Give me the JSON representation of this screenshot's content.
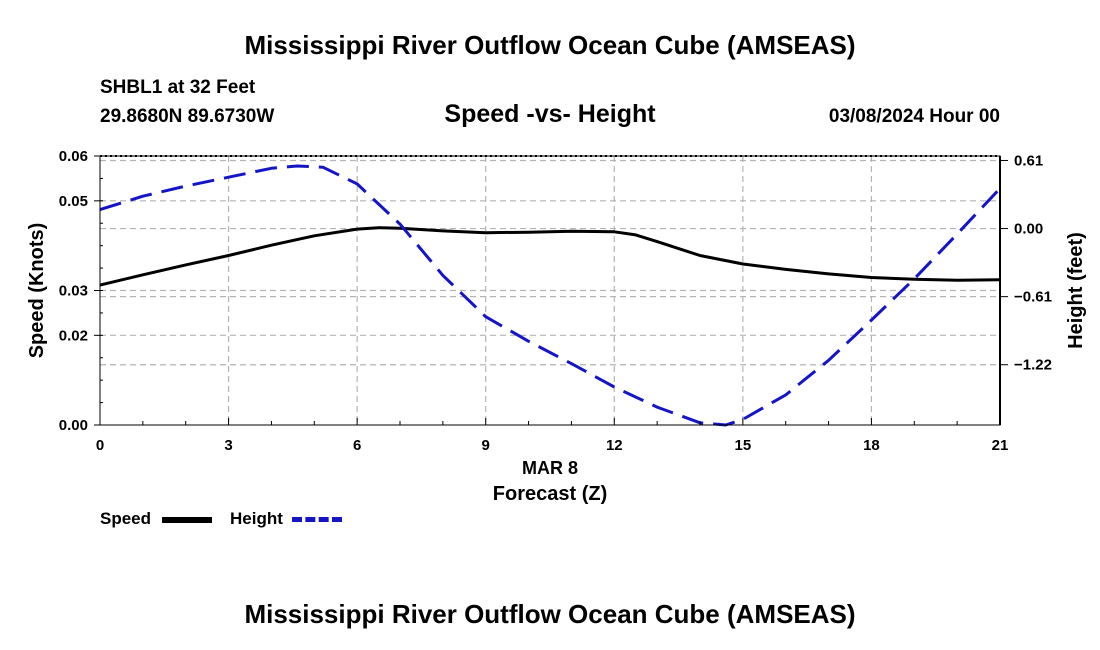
{
  "header": {
    "title": "Mississippi River Outflow Ocean Cube (AMSEAS)",
    "station": "SHBL1 at 32 Feet",
    "coords": "29.8680N  89.6730W",
    "subtitle": "Speed -vs- Height",
    "date": "03/08/2024 Hour 00"
  },
  "footer": {
    "title": "Mississippi River Outflow Ocean Cube (AMSEAS)"
  },
  "legend": {
    "speed_label": "Speed",
    "height_label": "Height"
  },
  "colors": {
    "speed": "#000000",
    "height": "#1515c8",
    "grid": "#b4b4b4"
  },
  "chart_data": {
    "type": "line",
    "title": "Speed -vs- Height",
    "xlabel": "Forecast (Z)",
    "xlabel_date": "MAR 8",
    "ylabel": "Speed (Knots)",
    "ylabel_right": "Height (feet)",
    "grid": true,
    "legend_position": "bottom-left",
    "xlim": [
      0,
      21
    ],
    "ylim": [
      0,
      0.06
    ],
    "ylim_right": [
      -1.76,
      0.65
    ],
    "x_ticks": [
      0,
      3,
      6,
      9,
      12,
      15,
      18,
      21
    ],
    "x_tick_labels": [
      "0",
      "3",
      "6",
      "9",
      "12",
      "15",
      "18",
      "21"
    ],
    "y_ticks": [
      0,
      0.02,
      0.03,
      0.05,
      0.06
    ],
    "y_tick_labels": [
      "0.00",
      "0.02",
      "0.03",
      "0.05",
      "0.06"
    ],
    "y_right_ticks": [
      0.61,
      0.0,
      -0.61,
      -1.22
    ],
    "y_right_tick_labels": [
      "0.61",
      "0.00",
      "−0.61",
      "−1.22"
    ],
    "series": [
      {
        "name": "Speed",
        "axis": "left",
        "style": "solid",
        "x": [
          0,
          1,
          2,
          3,
          4,
          5,
          6,
          6.5,
          7,
          8,
          9,
          10,
          11,
          12,
          12.5,
          13,
          14,
          15,
          16,
          17,
          18,
          19,
          20,
          21
        ],
        "values": [
          0.0312,
          0.0335,
          0.0357,
          0.0378,
          0.0401,
          0.0422,
          0.0437,
          0.044,
          0.0439,
          0.0433,
          0.0429,
          0.043,
          0.0432,
          0.0431,
          0.0424,
          0.0409,
          0.0378,
          0.0359,
          0.0347,
          0.0337,
          0.0329,
          0.0325,
          0.0323,
          0.0324
        ]
      },
      {
        "name": "Height",
        "axis": "right",
        "style": "dashed",
        "x": [
          0,
          1,
          2,
          3,
          4,
          4.6,
          5.2,
          6,
          7,
          8,
          9,
          10,
          11,
          12,
          13,
          14,
          14.6,
          15,
          16,
          17,
          18,
          19,
          20,
          21
        ],
        "values": [
          0.17,
          0.29,
          0.38,
          0.46,
          0.54,
          0.56,
          0.55,
          0.4,
          0.04,
          -0.42,
          -0.79,
          -1.01,
          -1.21,
          -1.42,
          -1.6,
          -1.74,
          -1.76,
          -1.71,
          -1.49,
          -1.18,
          -0.82,
          -0.45,
          -0.05,
          0.36
        ]
      }
    ]
  }
}
